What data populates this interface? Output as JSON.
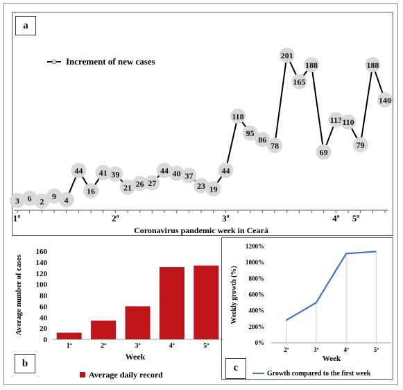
{
  "panels": {
    "a": "a",
    "b": "b",
    "c": "c"
  },
  "chart_data": [
    {
      "type": "line",
      "panel": "a",
      "legend": "Increment of new cases",
      "xlabel": "Coronavirus pandemic week in Ceará",
      "x_tick_labels": [
        "1ª",
        "2ª",
        "3ª",
        "4ª",
        "5ª"
      ],
      "values": [
        3,
        6,
        2,
        9,
        4,
        44,
        16,
        41,
        39,
        21,
        26,
        27,
        44,
        40,
        37,
        23,
        19,
        44,
        118,
        95,
        86,
        78,
        201,
        165,
        188,
        69,
        113,
        110,
        79,
        188,
        140
      ],
      "ylim": [
        0,
        210
      ],
      "line_color": "#000000",
      "marker_color": "#d9d9d9"
    },
    {
      "type": "bar",
      "panel": "b",
      "categories": [
        "1ª",
        "2ª",
        "3ª",
        "4ª",
        "5ª"
      ],
      "values": [
        12,
        34,
        60,
        131,
        134
      ],
      "series_name": "Average daily record",
      "xlabel": "Week",
      "ylabel": "Average number of cases",
      "ylim": [
        0,
        160
      ],
      "y_ticks": [
        0,
        20,
        40,
        60,
        80,
        100,
        120,
        140,
        160
      ],
      "bar_color": "#c0141b"
    },
    {
      "type": "line",
      "panel": "c",
      "categories": [
        "2ª",
        "3ª",
        "4ª",
        "5ª"
      ],
      "values": [
        280,
        500,
        1110,
        1135
      ],
      "series_name": "Growth compared to the first week",
      "xlabel": "Week",
      "ylabel": "Weekly growth (%)",
      "ylim": [
        0,
        1200
      ],
      "y_ticks": [
        "0%",
        "200%",
        "400%",
        "600%",
        "800%",
        "1000%",
        "1200%"
      ],
      "line_color": "#4472c4"
    }
  ]
}
